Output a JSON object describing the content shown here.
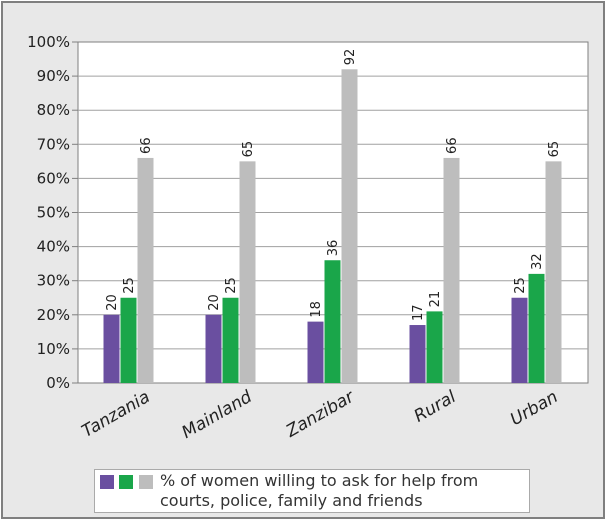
{
  "chart_data": {
    "type": "bar",
    "categories": [
      "Tanzania",
      "Mainland",
      "Zanzibar",
      "Rural",
      "Urban"
    ],
    "series": [
      {
        "values": [
          20,
          20,
          18,
          17,
          25
        ],
        "color": "#6a4fa0"
      },
      {
        "values": [
          25,
          25,
          36,
          21,
          32
        ],
        "color": "#1aa64a"
      },
      {
        "values": [
          66,
          65,
          92,
          66,
          65
        ],
        "color": "#bdbdbd"
      }
    ],
    "ylim": [
      0,
      100
    ],
    "yticks": [
      0,
      10,
      20,
      30,
      40,
      50,
      60,
      70,
      80,
      90,
      100
    ],
    "ytick_labels": [
      "0%",
      "10%",
      "20%",
      "30%",
      "40%",
      "50%",
      "60%",
      "70%",
      "80%",
      "90%",
      "100%"
    ],
    "grid": true,
    "legend": {
      "position": "bottom",
      "text": "% of women willing to ask for help from courts, police, family and friends"
    }
  }
}
